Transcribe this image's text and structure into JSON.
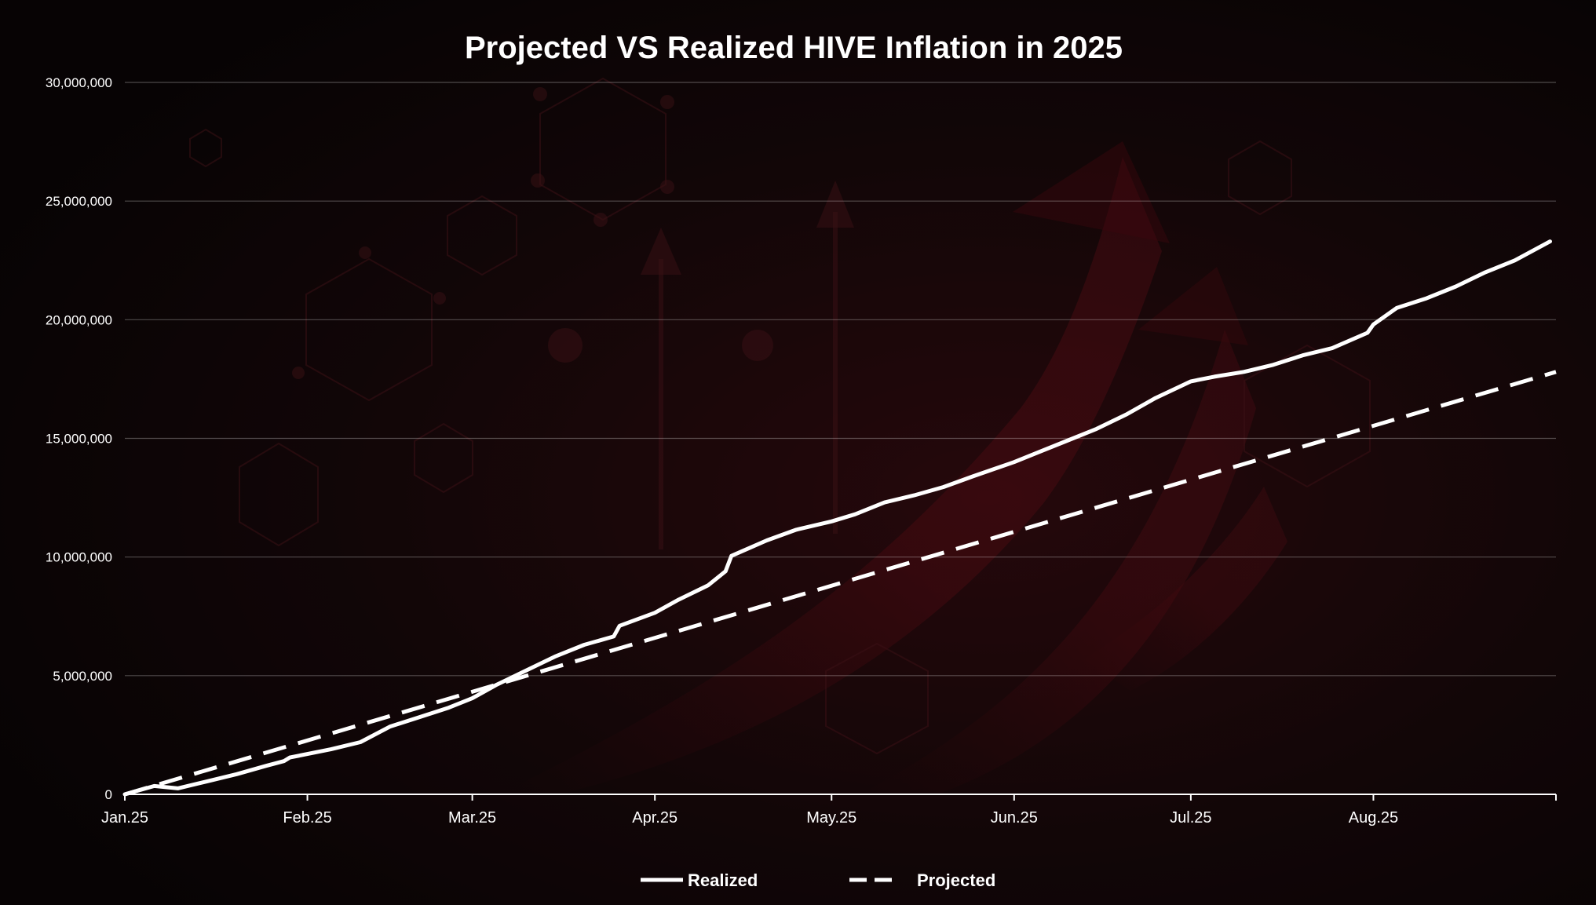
{
  "chart_data": {
    "type": "line",
    "title": "Projected VS Realized HIVE Inflation in 2025",
    "xlabel": "",
    "ylabel": "",
    "ylim": [
      0,
      30000000
    ],
    "yticks": [
      0,
      5000000,
      10000000,
      15000000,
      20000000,
      25000000,
      30000000
    ],
    "ytick_labels": [
      "0",
      "5,000,000",
      "10,000,000",
      "15,000,000",
      "20,000,000",
      "25,000,000",
      "30,000,000"
    ],
    "xtick_labels": [
      "Jan.25",
      "Feb.25",
      "Mar.25",
      "Apr.25",
      "May.25",
      "Jun.25",
      "Jul.25",
      "Aug.25"
    ],
    "xtick_dates": [
      "2025-01-01",
      "2025-02-01",
      "2025-03-01",
      "2025-04-01",
      "2025-05-01",
      "2025-06-01",
      "2025-07-01",
      "2025-08-01"
    ],
    "xlim": [
      "2025-01-01",
      "2025-09-01"
    ],
    "grid": true,
    "legend_position": "bottom",
    "series": [
      {
        "name": "Realized",
        "style": "solid",
        "color": "#ffffff",
        "x": [
          "2025-01-01",
          "2025-01-06",
          "2025-01-10",
          "2025-01-15",
          "2025-01-20",
          "2025-01-25",
          "2025-01-28",
          "2025-01-29",
          "2025-02-01",
          "2025-02-05",
          "2025-02-10",
          "2025-02-15",
          "2025-02-20",
          "2025-02-25",
          "2025-03-01",
          "2025-03-05",
          "2025-03-10",
          "2025-03-15",
          "2025-03-20",
          "2025-03-25",
          "2025-03-26",
          "2025-04-01",
          "2025-04-05",
          "2025-04-10",
          "2025-04-13",
          "2025-04-14",
          "2025-04-20",
          "2025-04-25",
          "2025-05-01",
          "2025-05-05",
          "2025-05-10",
          "2025-05-15",
          "2025-05-20",
          "2025-05-25",
          "2025-06-01",
          "2025-06-05",
          "2025-06-10",
          "2025-06-15",
          "2025-06-20",
          "2025-06-25",
          "2025-07-01",
          "2025-07-05",
          "2025-07-10",
          "2025-07-15",
          "2025-07-20",
          "2025-07-25",
          "2025-07-31",
          "2025-08-01",
          "2025-08-05",
          "2025-08-10",
          "2025-08-15",
          "2025-08-20",
          "2025-08-25",
          "2025-08-31"
        ],
        "values": [
          0,
          350000,
          250000,
          550000,
          850000,
          1200000,
          1400000,
          1550000,
          1700000,
          1900000,
          2200000,
          2850000,
          3250000,
          3650000,
          4050000,
          4600000,
          5200000,
          5800000,
          6300000,
          6650000,
          7100000,
          7650000,
          8200000,
          8800000,
          9400000,
          10050000,
          10700000,
          11150000,
          11500000,
          11800000,
          12300000,
          12600000,
          12950000,
          13400000,
          14000000,
          14400000,
          14900000,
          15400000,
          16000000,
          16700000,
          17400000,
          17600000,
          17800000,
          18100000,
          18500000,
          18800000,
          19450000,
          19800000,
          20500000,
          20900000,
          21400000,
          22000000,
          22500000,
          23300000
        ]
      },
      {
        "name": "Projected",
        "style": "dashed",
        "color": "#ffffff",
        "x": [
          "2025-01-01",
          "2025-09-01"
        ],
        "values": [
          0,
          17800000
        ]
      }
    ]
  }
}
